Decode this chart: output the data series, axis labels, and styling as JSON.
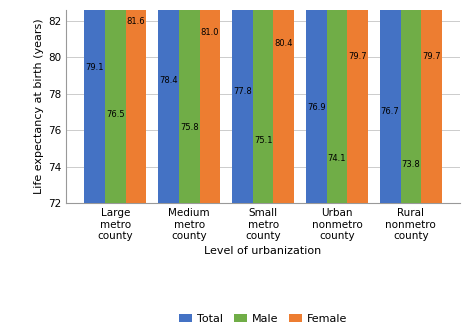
{
  "categories": [
    "Large\nmetro\ncounty",
    "Medium\nmetro\ncounty",
    "Small\nmetro\ncounty",
    "Urban\nnonmetro\ncounty",
    "Rural\nnonmetro\ncounty"
  ],
  "total": [
    79.1,
    78.4,
    77.8,
    76.9,
    76.7
  ],
  "male": [
    76.5,
    75.8,
    75.1,
    74.1,
    73.8
  ],
  "female": [
    81.6,
    81.0,
    80.4,
    79.7,
    79.7
  ],
  "bar_colors": {
    "Total": "#4472C4",
    "Male": "#70AD47",
    "Female": "#ED7D31"
  },
  "ylabel": "Life expectancy at birth (years)",
  "xlabel": "Level of urbanization",
  "ylim": [
    72,
    82.6
  ],
  "yticks": [
    72,
    74,
    76,
    78,
    80,
    82
  ],
  "legend_labels": [
    "Total",
    "Male",
    "Female"
  ],
  "bar_width": 0.28,
  "label_fontsize": 6.0,
  "axis_fontsize": 8.0,
  "tick_fontsize": 7.5,
  "legend_fontsize": 8,
  "background_color": "#ffffff",
  "grid_color": "#cccccc"
}
